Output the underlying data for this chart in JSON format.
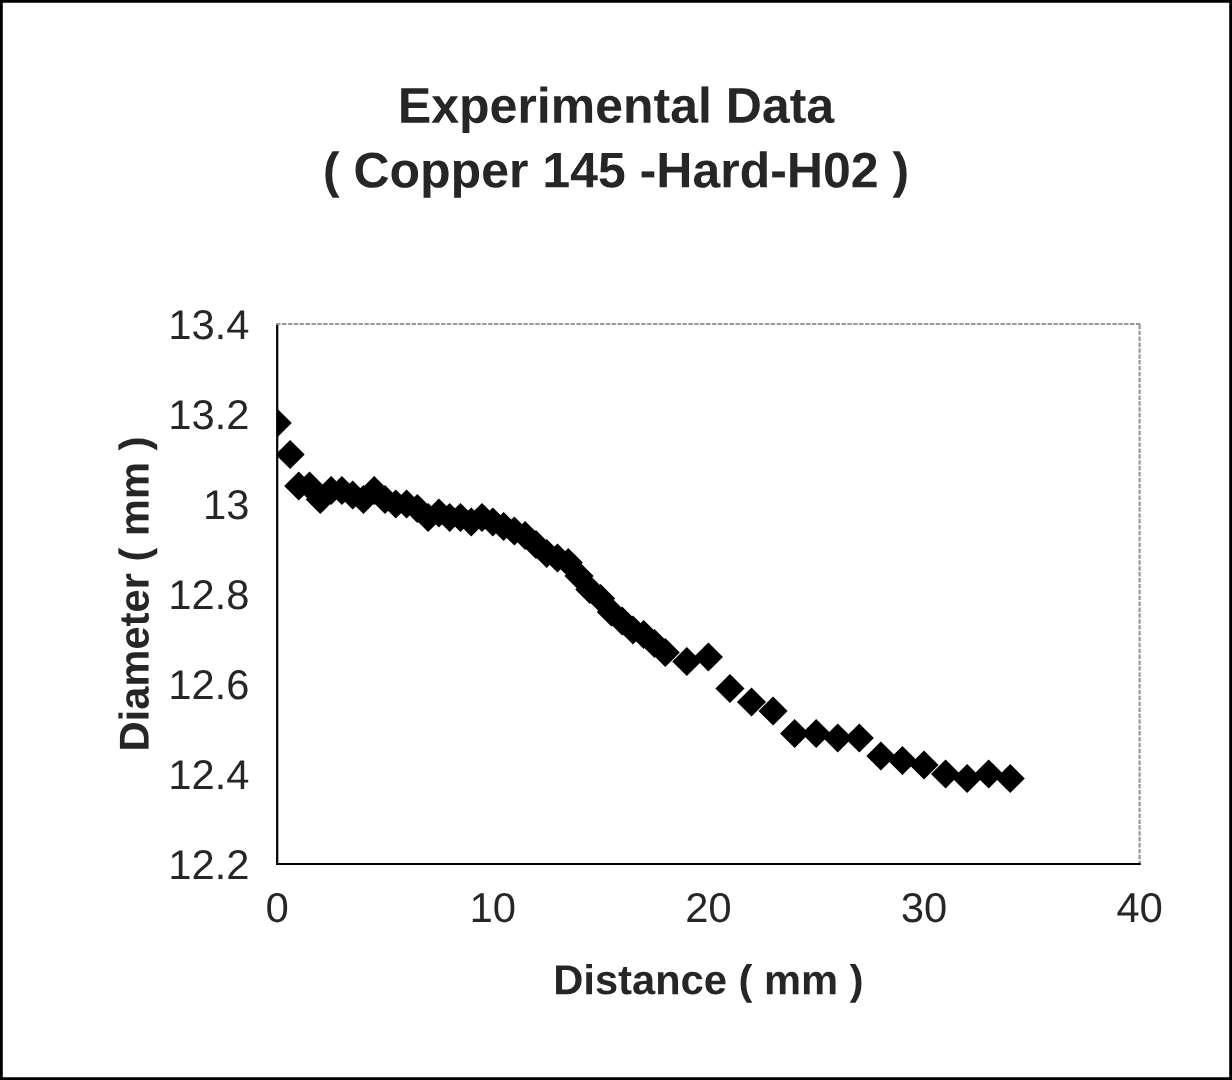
{
  "chart_data": {
    "type": "scatter",
    "title": "Experimental Data\n( Copper 145 -Hard-H02 )",
    "xlabel": "Distance ( mm )",
    "ylabel": "Diameter ( mm )",
    "x": [
      0,
      0.6,
      1,
      1.5,
      2,
      2.5,
      3,
      3.5,
      4,
      4.5,
      5,
      5.5,
      6,
      6.5,
      7,
      7.5,
      8,
      8.5,
      9,
      9.5,
      10,
      10.5,
      11,
      11.5,
      12,
      12.5,
      13,
      13.5,
      14,
      14.5,
      15,
      15.5,
      16,
      16.5,
      17,
      17.5,
      18,
      19,
      20,
      21,
      22,
      23,
      24,
      25,
      26,
      27,
      28,
      29,
      30,
      31,
      32,
      33,
      34
    ],
    "series": [
      {
        "color": "#000000",
        "values": [
          13.18,
          13.11,
          13.04,
          13.04,
          13.01,
          13.03,
          13.03,
          13.02,
          13.01,
          13.03,
          13.01,
          13.0,
          13.0,
          12.99,
          12.97,
          12.98,
          12.97,
          12.97,
          12.96,
          12.97,
          12.96,
          12.95,
          12.94,
          12.93,
          12.91,
          12.89,
          12.88,
          12.87,
          12.84,
          12.81,
          12.79,
          12.76,
          12.74,
          12.72,
          12.71,
          12.69,
          12.67,
          12.65,
          12.66,
          12.59,
          12.56,
          12.54,
          12.49,
          12.49,
          12.48,
          12.48,
          12.44,
          12.43,
          12.42,
          12.4,
          12.39,
          12.4,
          12.39
        ]
      }
    ],
    "xlim": [
      0,
      40
    ],
    "xticks": [
      0,
      10,
      20,
      30,
      40
    ],
    "ylim": [
      12.2,
      13.4
    ],
    "yticks": [
      {
        "value": 12.2,
        "label": "12.2"
      },
      {
        "value": 12.4,
        "label": "12.4"
      },
      {
        "value": 12.6,
        "label": "12.6"
      },
      {
        "value": 12.8,
        "label": "12.8"
      },
      {
        "value": 13,
        "label": "13"
      },
      {
        "value": 13.2,
        "label": "13.2"
      },
      {
        "value": 13.4,
        "label": "13.4"
      }
    ],
    "marker": "diamond",
    "grid": false,
    "legend": false
  }
}
